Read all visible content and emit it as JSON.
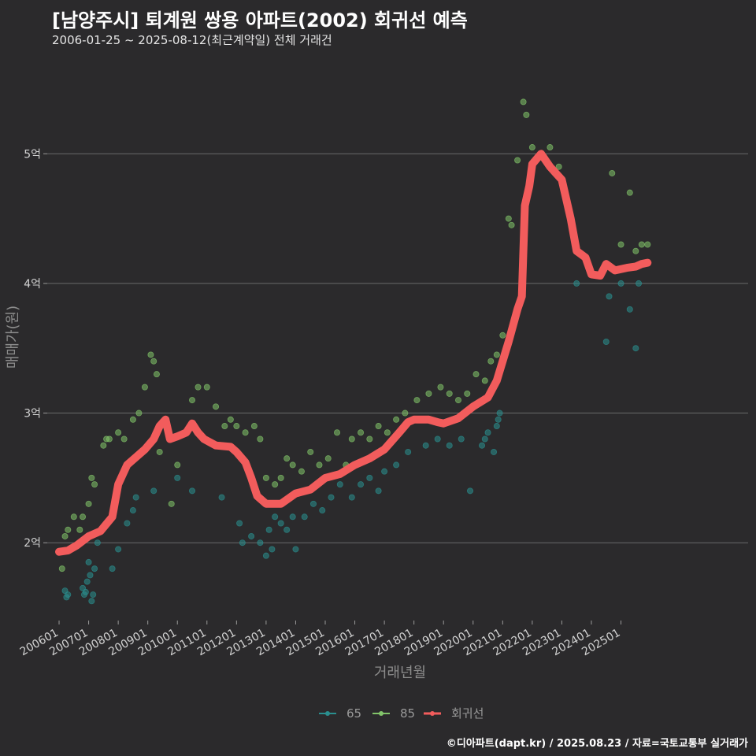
{
  "header": {
    "title": "[남양주시] 퇴계원 쌍용 아파트(2002) 회귀선 예측",
    "subtitle": "2006-01-25 ~ 2025-08-12(최근계약일) 전체 거래건"
  },
  "footer": {
    "credit": "©디아파트(dapt.kr) / 2025.08.23 / 자료=국토교통부 실거래가"
  },
  "chart_data": {
    "type": "scatter",
    "xlabel": "거래년월",
    "ylabel": "매매가(원)",
    "xlim": [
      2005.6,
      2029.3
    ],
    "ylim": [
      1.4,
      5.7
    ],
    "x_ticks": [
      2006,
      2007,
      2008,
      2009,
      2010,
      2011,
      2012,
      2013,
      2014,
      2015,
      2016,
      2017,
      2018,
      2019,
      2020,
      2021,
      2022,
      2023,
      2024,
      2025
    ],
    "x_tick_labels": [
      "200601",
      "200701",
      "200801",
      "200901",
      "201001",
      "201101",
      "201201",
      "201301",
      "201401",
      "201501",
      "201601",
      "201701",
      "201801",
      "201901",
      "202001",
      "202101",
      "202201",
      "202301",
      "202401",
      "202501"
    ],
    "y_ticks": [
      2,
      3,
      4,
      5
    ],
    "y_tick_labels": [
      "2억",
      "3억",
      "4억",
      "5억"
    ],
    "grid": true,
    "legend_position": "bottom",
    "colors": {
      "65": "#2a8f8f",
      "85": "#82c46a",
      "회귀선": "#f25c5c"
    },
    "series": [
      {
        "name": "65",
        "kind": "points",
        "points": [
          [
            2006.2,
            1.63
          ],
          [
            2006.25,
            1.58
          ],
          [
            2006.3,
            1.6
          ],
          [
            2006.8,
            1.65
          ],
          [
            2006.85,
            1.6
          ],
          [
            2006.9,
            1.62
          ],
          [
            2006.95,
            1.7
          ],
          [
            2007.0,
            1.85
          ],
          [
            2007.05,
            1.75
          ],
          [
            2007.1,
            1.55
          ],
          [
            2007.15,
            1.6
          ],
          [
            2007.2,
            1.8
          ],
          [
            2007.3,
            2.0
          ],
          [
            2007.8,
            1.8
          ],
          [
            2008.0,
            1.95
          ],
          [
            2008.3,
            2.15
          ],
          [
            2008.5,
            2.25
          ],
          [
            2008.6,
            2.35
          ],
          [
            2009.2,
            2.4
          ],
          [
            2010.0,
            2.5
          ],
          [
            2010.5,
            2.4
          ],
          [
            2011.5,
            2.35
          ],
          [
            2012.1,
            2.15
          ],
          [
            2012.2,
            2.0
          ],
          [
            2012.5,
            2.05
          ],
          [
            2012.8,
            2.0
          ],
          [
            2013.0,
            1.9
          ],
          [
            2013.1,
            2.1
          ],
          [
            2013.2,
            1.95
          ],
          [
            2013.3,
            2.2
          ],
          [
            2013.5,
            2.15
          ],
          [
            2013.7,
            2.1
          ],
          [
            2013.9,
            2.2
          ],
          [
            2014.0,
            1.95
          ],
          [
            2014.3,
            2.2
          ],
          [
            2014.6,
            2.3
          ],
          [
            2014.9,
            2.25
          ],
          [
            2015.2,
            2.35
          ],
          [
            2015.5,
            2.45
          ],
          [
            2015.9,
            2.35
          ],
          [
            2016.2,
            2.45
          ],
          [
            2016.5,
            2.5
          ],
          [
            2016.8,
            2.4
          ],
          [
            2017.0,
            2.55
          ],
          [
            2017.4,
            2.6
          ],
          [
            2017.8,
            2.7
          ],
          [
            2018.4,
            2.75
          ],
          [
            2018.8,
            2.8
          ],
          [
            2019.2,
            2.75
          ],
          [
            2019.6,
            2.8
          ],
          [
            2019.9,
            2.4
          ],
          [
            2020.3,
            2.75
          ],
          [
            2020.4,
            2.8
          ],
          [
            2020.5,
            2.85
          ],
          [
            2020.7,
            2.7
          ],
          [
            2020.8,
            2.9
          ],
          [
            2020.85,
            2.95
          ],
          [
            2020.9,
            3.0
          ],
          [
            2023.5,
            4.0
          ],
          [
            2024.5,
            3.55
          ],
          [
            2024.6,
            3.9
          ],
          [
            2025.0,
            4.0
          ],
          [
            2025.3,
            3.8
          ],
          [
            2025.5,
            3.5
          ],
          [
            2025.6,
            4.0
          ]
        ]
      },
      {
        "name": "85",
        "kind": "points",
        "points": [
          [
            2006.1,
            1.8
          ],
          [
            2006.2,
            2.05
          ],
          [
            2006.3,
            2.1
          ],
          [
            2006.5,
            2.2
          ],
          [
            2006.7,
            2.1
          ],
          [
            2006.8,
            2.2
          ],
          [
            2007.0,
            2.3
          ],
          [
            2007.1,
            2.5
          ],
          [
            2007.2,
            2.45
          ],
          [
            2007.5,
            2.75
          ],
          [
            2007.6,
            2.8
          ],
          [
            2007.7,
            2.8
          ],
          [
            2008.0,
            2.85
          ],
          [
            2008.2,
            2.8
          ],
          [
            2008.5,
            2.95
          ],
          [
            2008.7,
            3.0
          ],
          [
            2008.9,
            3.2
          ],
          [
            2009.1,
            3.45
          ],
          [
            2009.2,
            3.4
          ],
          [
            2009.3,
            3.3
          ],
          [
            2009.4,
            2.7
          ],
          [
            2009.6,
            2.9
          ],
          [
            2009.8,
            2.3
          ],
          [
            2010.0,
            2.6
          ],
          [
            2010.3,
            2.85
          ],
          [
            2010.5,
            3.1
          ],
          [
            2010.7,
            3.2
          ],
          [
            2011.0,
            3.2
          ],
          [
            2011.3,
            3.05
          ],
          [
            2011.6,
            2.9
          ],
          [
            2011.8,
            2.95
          ],
          [
            2012.0,
            2.9
          ],
          [
            2012.3,
            2.85
          ],
          [
            2012.6,
            2.9
          ],
          [
            2012.8,
            2.8
          ],
          [
            2013.0,
            2.5
          ],
          [
            2013.3,
            2.45
          ],
          [
            2013.5,
            2.5
          ],
          [
            2013.7,
            2.65
          ],
          [
            2013.9,
            2.6
          ],
          [
            2014.2,
            2.55
          ],
          [
            2014.5,
            2.7
          ],
          [
            2014.8,
            2.6
          ],
          [
            2015.1,
            2.65
          ],
          [
            2015.4,
            2.85
          ],
          [
            2015.7,
            2.6
          ],
          [
            2015.9,
            2.8
          ],
          [
            2016.2,
            2.85
          ],
          [
            2016.5,
            2.8
          ],
          [
            2016.8,
            2.9
          ],
          [
            2017.1,
            2.85
          ],
          [
            2017.4,
            2.95
          ],
          [
            2017.7,
            3.0
          ],
          [
            2018.1,
            3.1
          ],
          [
            2018.5,
            3.15
          ],
          [
            2018.9,
            3.2
          ],
          [
            2019.2,
            3.15
          ],
          [
            2019.5,
            3.1
          ],
          [
            2019.8,
            3.15
          ],
          [
            2020.1,
            3.3
          ],
          [
            2020.4,
            3.25
          ],
          [
            2020.6,
            3.4
          ],
          [
            2020.8,
            3.45
          ],
          [
            2021.0,
            3.6
          ],
          [
            2021.2,
            4.5
          ],
          [
            2021.3,
            4.45
          ],
          [
            2021.5,
            4.95
          ],
          [
            2021.7,
            5.4
          ],
          [
            2021.8,
            5.3
          ],
          [
            2022.0,
            5.05
          ],
          [
            2022.3,
            5.0
          ],
          [
            2022.6,
            5.05
          ],
          [
            2022.9,
            4.9
          ],
          [
            2023.2,
            4.6
          ],
          [
            2024.7,
            4.85
          ],
          [
            2025.0,
            4.3
          ],
          [
            2025.3,
            4.7
          ],
          [
            2025.5,
            4.25
          ],
          [
            2025.7,
            4.3
          ],
          [
            2025.9,
            4.3
          ]
        ]
      },
      {
        "name": "회귀선",
        "kind": "line",
        "points": [
          [
            2006.0,
            1.93
          ],
          [
            2006.3,
            1.94
          ],
          [
            2006.6,
            1.98
          ],
          [
            2007.0,
            2.05
          ],
          [
            2007.4,
            2.09
          ],
          [
            2007.8,
            2.2
          ],
          [
            2008.0,
            2.45
          ],
          [
            2008.3,
            2.6
          ],
          [
            2008.6,
            2.66
          ],
          [
            2008.9,
            2.72
          ],
          [
            2009.2,
            2.8
          ],
          [
            2009.4,
            2.9
          ],
          [
            2009.6,
            2.95
          ],
          [
            2009.75,
            2.8
          ],
          [
            2010.0,
            2.82
          ],
          [
            2010.3,
            2.85
          ],
          [
            2010.5,
            2.92
          ],
          [
            2010.7,
            2.85
          ],
          [
            2010.9,
            2.8
          ],
          [
            2011.3,
            2.75
          ],
          [
            2011.8,
            2.74
          ],
          [
            2012.0,
            2.7
          ],
          [
            2012.3,
            2.62
          ],
          [
            2012.5,
            2.5
          ],
          [
            2012.7,
            2.36
          ],
          [
            2013.0,
            2.3
          ],
          [
            2013.5,
            2.3
          ],
          [
            2014.0,
            2.38
          ],
          [
            2014.5,
            2.41
          ],
          [
            2015.0,
            2.5
          ],
          [
            2015.5,
            2.53
          ],
          [
            2016.0,
            2.6
          ],
          [
            2016.5,
            2.65
          ],
          [
            2017.0,
            2.72
          ],
          [
            2017.5,
            2.85
          ],
          [
            2017.8,
            2.93
          ],
          [
            2018.0,
            2.95
          ],
          [
            2018.5,
            2.95
          ],
          [
            2018.8,
            2.93
          ],
          [
            2019.0,
            2.92
          ],
          [
            2019.5,
            2.96
          ],
          [
            2020.0,
            3.05
          ],
          [
            2020.5,
            3.12
          ],
          [
            2020.8,
            3.25
          ],
          [
            2021.0,
            3.4
          ],
          [
            2021.2,
            3.55
          ],
          [
            2021.5,
            3.8
          ],
          [
            2021.65,
            3.9
          ],
          [
            2021.75,
            4.6
          ],
          [
            2021.9,
            4.75
          ],
          [
            2022.0,
            4.92
          ],
          [
            2022.3,
            5.0
          ],
          [
            2022.6,
            4.9
          ],
          [
            2022.8,
            4.85
          ],
          [
            2023.0,
            4.8
          ],
          [
            2023.3,
            4.5
          ],
          [
            2023.5,
            4.25
          ],
          [
            2023.8,
            4.2
          ],
          [
            2024.0,
            4.07
          ],
          [
            2024.3,
            4.06
          ],
          [
            2024.5,
            4.15
          ],
          [
            2024.8,
            4.1
          ],
          [
            2025.2,
            4.12
          ],
          [
            2025.5,
            4.13
          ],
          [
            2025.7,
            4.15
          ],
          [
            2025.9,
            4.16
          ]
        ]
      }
    ]
  }
}
